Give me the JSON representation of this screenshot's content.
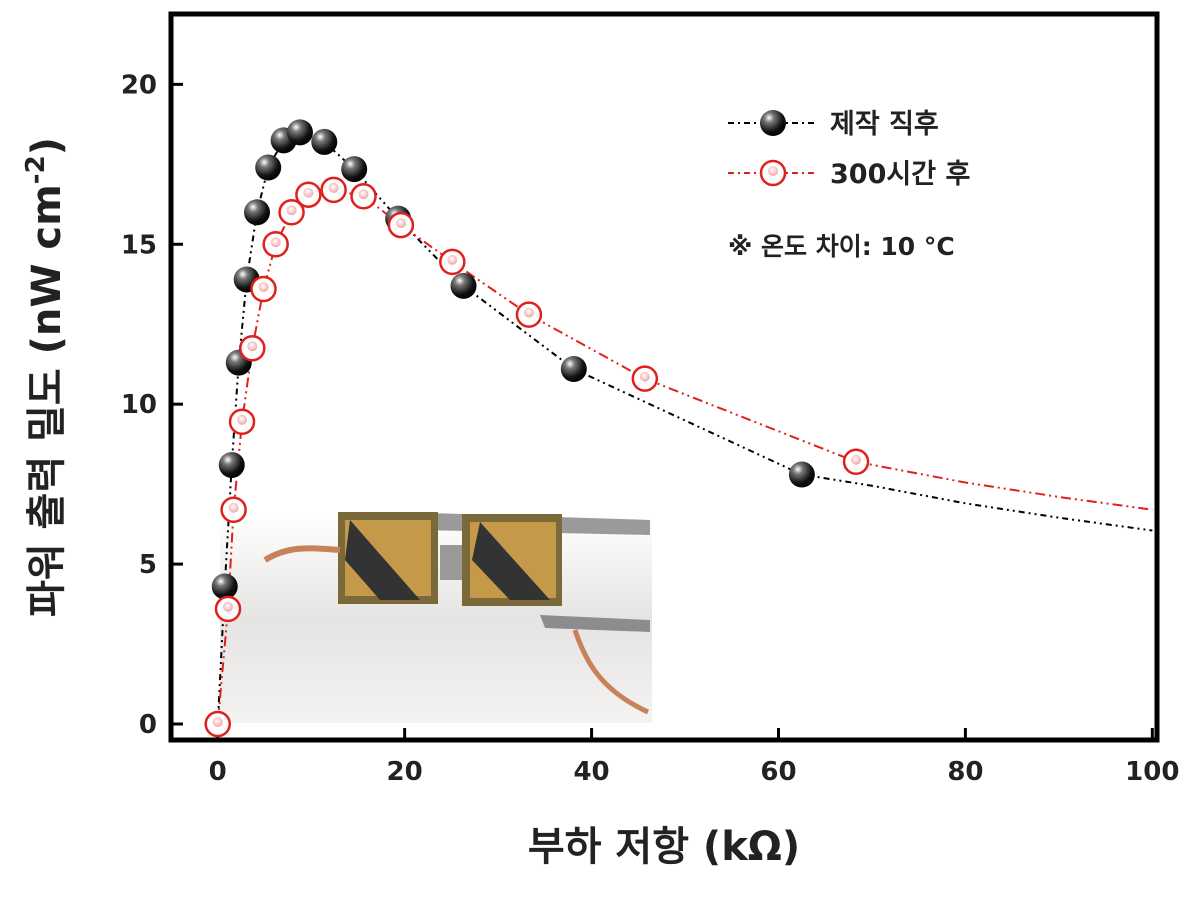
{
  "chart_data": {
    "type": "scatter",
    "xlabel": "부하 저항 (kΩ)",
    "ylabel": "파워 출력 밀도 (nW cm",
    "ylabel_superscript": "-2",
    "ylabel_end": ")",
    "annotation": "※ 온도 차이: 10 °C",
    "xlim": [
      -5,
      100.5
    ],
    "ylim": [
      -0.5,
      22.2
    ],
    "xticks": [
      0,
      20,
      40,
      60,
      80,
      100
    ],
    "yticks": [
      0,
      5,
      10,
      15,
      20
    ],
    "legend": "upper right",
    "series": [
      {
        "name": "제작 직후",
        "color": "#000000",
        "marker": "filled",
        "x": [
          0,
          0.75,
          1.5,
          2.25,
          3.1,
          4.2,
          5.4,
          7.05,
          8.8,
          11.4,
          14.6,
          19.3,
          26.3,
          38.1,
          62.5
        ],
        "values": [
          0,
          4.3,
          8.1,
          11.3,
          13.9,
          16.0,
          17.4,
          18.25,
          18.5,
          18.2,
          17.35,
          15.8,
          13.7,
          11.1,
          7.8
        ],
        "trend_x": [
          62.5,
          70,
          80,
          90,
          100
        ],
        "trend_values": [
          7.8,
          7.45,
          6.9,
          6.45,
          6.05
        ]
      },
      {
        "name": "300시간 후",
        "color": "#e0201b",
        "marker": "open",
        "x": [
          0,
          1.1,
          1.7,
          2.6,
          3.7,
          4.9,
          6.2,
          7.9,
          9.7,
          12.4,
          15.6,
          19.6,
          25.1,
          33.3,
          45.7,
          68.3
        ],
        "values": [
          0,
          3.6,
          6.7,
          9.45,
          11.75,
          13.6,
          15.0,
          16.0,
          16.55,
          16.7,
          16.5,
          15.6,
          14.45,
          12.8,
          10.8,
          8.2
        ],
        "trend_x": [
          68.3,
          80,
          90,
          100
        ],
        "trend_values": [
          8.2,
          7.55,
          7.1,
          6.7
        ]
      }
    ]
  }
}
